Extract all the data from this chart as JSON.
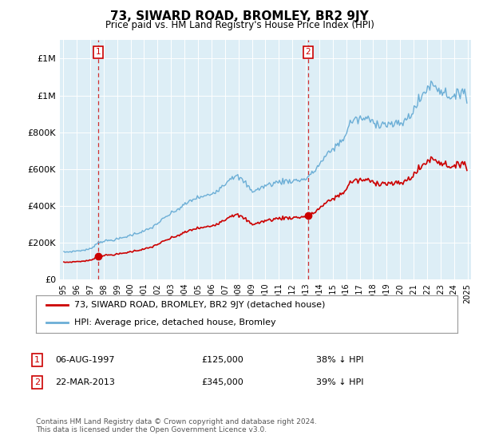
{
  "title": "73, SIWARD ROAD, BROMLEY, BR2 9JY",
  "subtitle": "Price paid vs. HM Land Registry's House Price Index (HPI)",
  "legend_line1": "73, SIWARD ROAD, BROMLEY, BR2 9JY (detached house)",
  "legend_line2": "HPI: Average price, detached house, Bromley",
  "annotation1_label": "1",
  "annotation1_date": "06-AUG-1997",
  "annotation1_price": "£125,000",
  "annotation1_pct": "38% ↓ HPI",
  "annotation2_label": "2",
  "annotation2_date": "22-MAR-2013",
  "annotation2_price": "£345,000",
  "annotation2_pct": "39% ↓ HPI",
  "footer": "Contains HM Land Registry data © Crown copyright and database right 2024.\nThis data is licensed under the Open Government Licence v3.0.",
  "hpi_color": "#6baed6",
  "price_color": "#cc0000",
  "annotation_color": "#cc0000",
  "background_color": "#ddeef6",
  "ylim_max": 1300000,
  "sale1_year_f": 1997.583,
  "sale1_price": 125000,
  "sale2_year_f": 2013.167,
  "sale2_price": 345000
}
